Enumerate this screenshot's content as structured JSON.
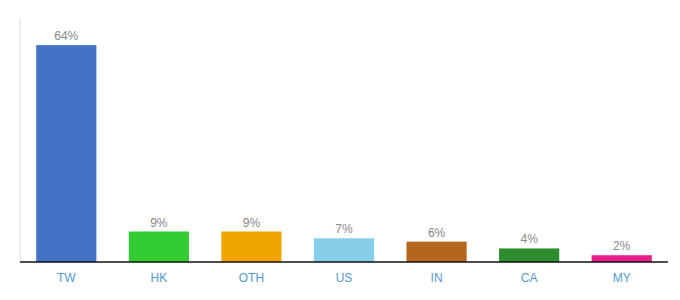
{
  "chart_data": {
    "type": "bar",
    "categories": [
      "TW",
      "HK",
      "OTH",
      "US",
      "IN",
      "CA",
      "MY"
    ],
    "values": [
      64,
      9,
      9,
      7,
      6,
      4,
      2
    ],
    "value_labels": [
      "64%",
      "9%",
      "9%",
      "7%",
      "6%",
      "4%",
      "2%"
    ],
    "colors": [
      "#4472c4",
      "#33cc33",
      "#f0a500",
      "#87ceeb",
      "#b5651d",
      "#2d8c2d",
      "#e91e8c"
    ],
    "ylim": [
      0,
      72
    ],
    "data_labels": true,
    "tick_labels": "x",
    "grid": false
  }
}
